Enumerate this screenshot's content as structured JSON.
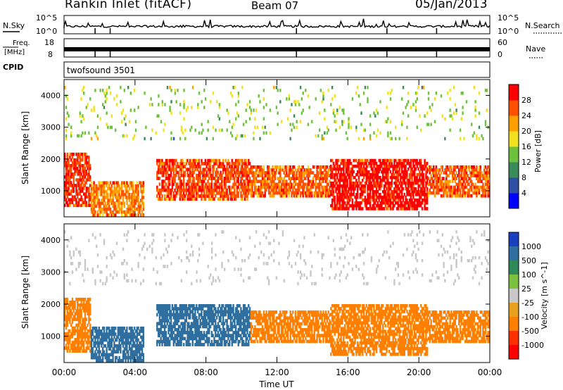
{
  "header": {
    "title": "Rankin Inlet (fitACF)",
    "beam": "Beam 07",
    "date": "05/Jan/2013"
  },
  "top_panels": {
    "nsky_label": "N.Sky",
    "nsearch_label": "N.Search",
    "freq_label": "Freq.",
    "freq_unit": "[MHz]",
    "nave_label": "Nave",
    "cpid_label": "CPID",
    "cpid_value": "twofsound 3501",
    "noise_ticks_left": [
      "10^5",
      "10^0"
    ],
    "noise_ticks_right": [
      "10^5",
      "10^0"
    ],
    "freq_ticks": [
      "18",
      "8"
    ],
    "nave_ticks": [
      "60",
      "0"
    ]
  },
  "colors": {
    "power_scale": [
      "#0000ff",
      "#2e4fa3",
      "#3a8a5a",
      "#6ec13c",
      "#f0e020",
      "#ffa000",
      "#ff5000",
      "#ff0000"
    ],
    "velocity_scale": [
      "#1a3fc0",
      "#2e6fa0",
      "#2f8a5a",
      "#7cc13c",
      "#c8c8c8",
      "#e8a020",
      "#ff8000",
      "#ff3000",
      "#ff0000"
    ]
  },
  "chart_data": [
    {
      "type": "heatmap",
      "title": "",
      "panel": "power",
      "xlabel": "",
      "ylabel": "Slant Range [km]",
      "xlim": [
        "00:00",
        "24:00"
      ],
      "ylim": [
        180,
        4500
      ],
      "x_ticks": [
        "00:00",
        "04:00",
        "08:00",
        "12:00",
        "16:00",
        "20:00",
        "00:00"
      ],
      "y_ticks": [
        1000,
        2000,
        3000,
        4000
      ],
      "colorbar": {
        "label": "Power [dB]",
        "ticks": [
          "4",
          "8",
          "12",
          "16",
          "20",
          "24",
          "28"
        ],
        "range": [
          0,
          30
        ]
      },
      "regions": [
        {
          "t_start": 0.0,
          "t_end": 1.5,
          "r_low": 500,
          "r_high": 2200,
          "value": 26
        },
        {
          "t_start": 1.5,
          "t_end": 4.5,
          "r_low": 200,
          "r_high": 1300,
          "value": 22
        },
        {
          "t_start": 5.2,
          "t_end": 10.5,
          "r_low": 700,
          "r_high": 2000,
          "value": 25
        },
        {
          "t_start": 10.5,
          "t_end": 15.0,
          "r_low": 800,
          "r_high": 1800,
          "value": 24
        },
        {
          "t_start": 15.0,
          "t_end": 20.5,
          "r_low": 400,
          "r_high": 2000,
          "value": 28
        },
        {
          "t_start": 20.5,
          "t_end": 24.0,
          "r_low": 800,
          "r_high": 1800,
          "value": 24
        },
        {
          "t_start": 0.0,
          "t_end": 24.0,
          "r_low": 2600,
          "r_high": 4300,
          "value": 14
        }
      ]
    },
    {
      "type": "heatmap",
      "title": "",
      "panel": "velocity",
      "xlabel": "Time UT",
      "ylabel": "Slant Range [km]",
      "xlim": [
        "00:00",
        "24:00"
      ],
      "ylim": [
        180,
        4500
      ],
      "x_ticks": [
        "00:00",
        "04:00",
        "08:00",
        "12:00",
        "16:00",
        "20:00",
        "00:00"
      ],
      "y_ticks": [
        1000,
        2000,
        3000,
        4000
      ],
      "colorbar": {
        "label": "Velocity [m s^-1]",
        "ticks": [
          "1000",
          "500",
          "100",
          "25",
          "-25",
          "-100",
          "-500",
          "-1000"
        ]
      },
      "regions": [
        {
          "t_start": 0.0,
          "t_end": 1.5,
          "r_low": 500,
          "r_high": 2200,
          "value": -300
        },
        {
          "t_start": 1.5,
          "t_end": 4.5,
          "r_low": 200,
          "r_high": 1300,
          "value": 300
        },
        {
          "t_start": 5.2,
          "t_end": 10.5,
          "r_low": 700,
          "r_high": 2000,
          "value": 300
        },
        {
          "t_start": 10.5,
          "t_end": 15.0,
          "r_low": 800,
          "r_high": 1800,
          "value": -300
        },
        {
          "t_start": 15.0,
          "t_end": 20.5,
          "r_low": 400,
          "r_high": 2000,
          "value": -300
        },
        {
          "t_start": 20.5,
          "t_end": 24.0,
          "r_low": 800,
          "r_high": 1800,
          "value": -200
        },
        {
          "t_start": 0.0,
          "t_end": 24.0,
          "r_low": 2600,
          "r_high": 4300,
          "value": 0
        }
      ]
    }
  ]
}
